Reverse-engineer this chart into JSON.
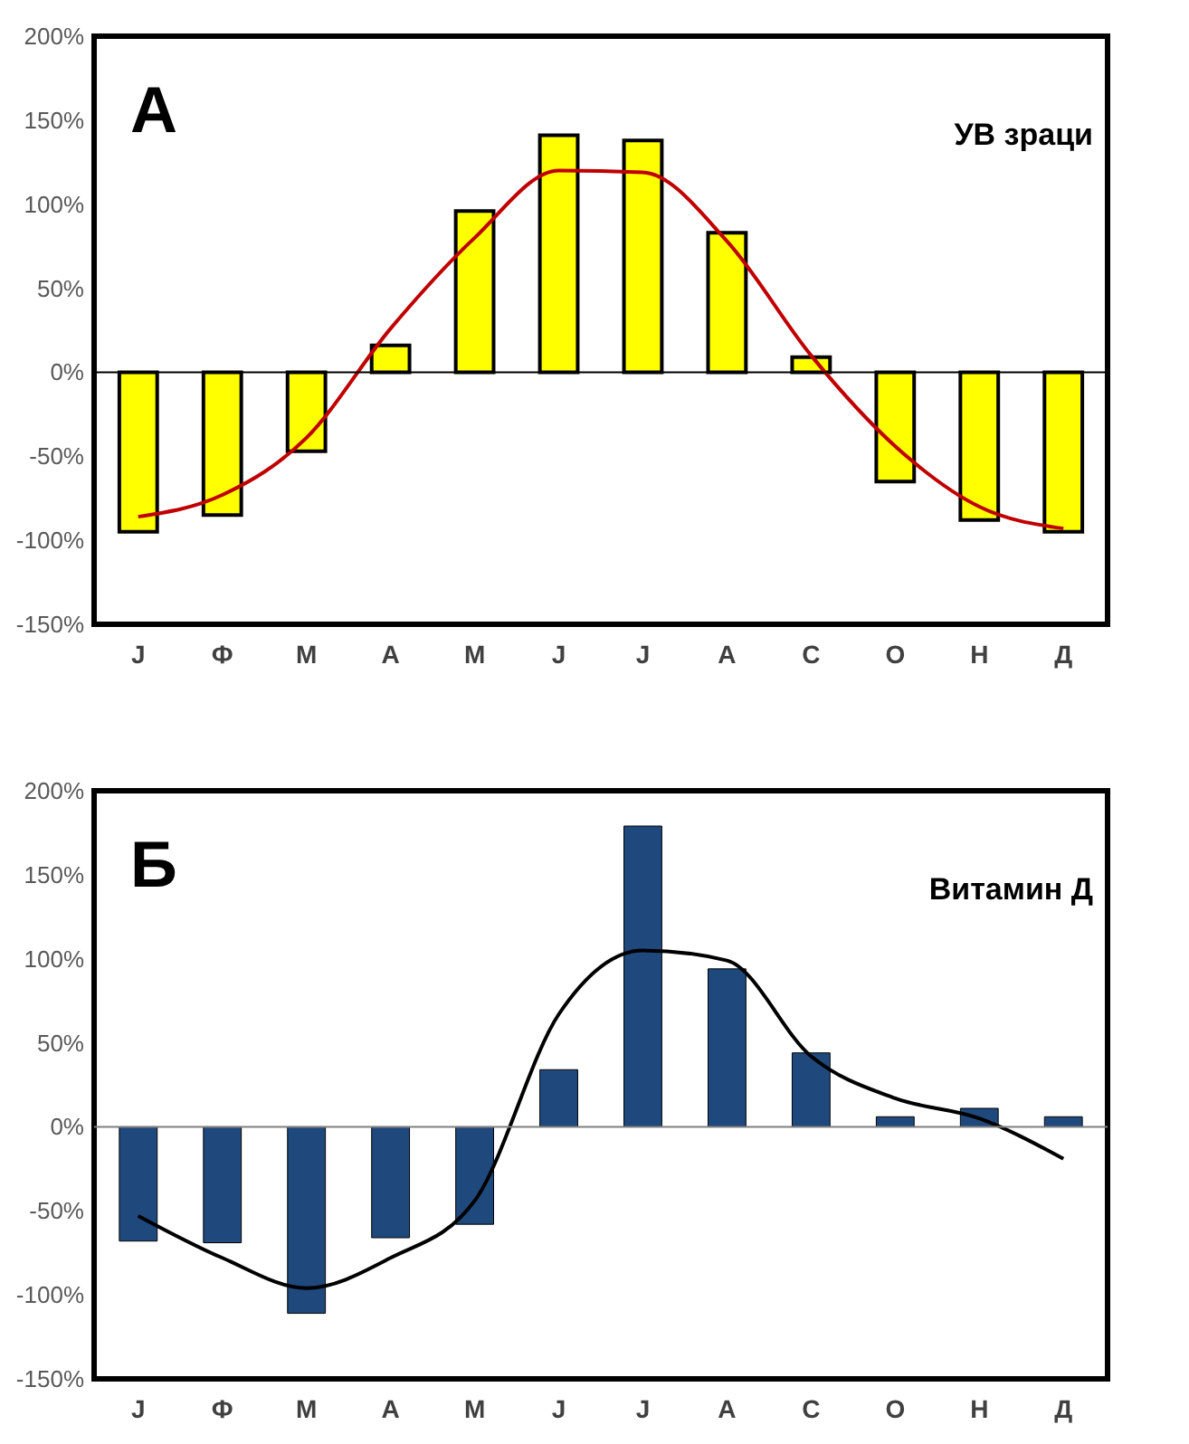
{
  "chart_data": [
    {
      "type": "bar",
      "categories": [
        "Ј",
        "Ф",
        "М",
        "А",
        "М",
        "Ј",
        "Ј",
        "А",
        "С",
        "О",
        "Н",
        "Д"
      ],
      "series": [
        {
          "color": "#ffff00",
          "values": [
            -95,
            -85,
            -47,
            16,
            96,
            141,
            138,
            83,
            9,
            -65,
            -88,
            -95
          ]
        },
        {
          "type": "line",
          "color": "#c00000",
          "values": [
            -86,
            -73,
            -39,
            26,
            80,
            120,
            119,
            78,
            10,
            -44,
            -80,
            -93
          ]
        }
      ],
      "ylim": [
        -150,
        200
      ],
      "yticks": [
        {
          "value": -150,
          "label": "-150%"
        },
        {
          "value": -100,
          "label": "-100%"
        },
        {
          "value": -50,
          "label": "-50%"
        },
        {
          "value": 0,
          "label": "0%"
        },
        {
          "value": 50,
          "label": "50%"
        },
        {
          "value": 100,
          "label": "100%"
        },
        {
          "value": 150,
          "label": "150%"
        },
        {
          "value": 200,
          "label": "200%"
        }
      ],
      "ref_lines": [
        {
          "axis": "y",
          "value": 0,
          "color": "#000000"
        }
      ],
      "annotations": [
        "А",
        "УВ зраци"
      ],
      "grid": false
    },
    {
      "type": "bar",
      "categories": [
        "Ј",
        "Ф",
        "М",
        "А",
        "М",
        "Ј",
        "Ј",
        "А",
        "С",
        "О",
        "Н",
        "Д"
      ],
      "series": [
        {
          "color": "#1f497d",
          "values": [
            -68,
            -69,
            -111,
            -66,
            -58,
            34,
            179,
            94,
            44,
            6,
            11,
            6
          ]
        },
        {
          "type": "line",
          "color": "#000000",
          "values": [
            -53,
            -78,
            -96,
            -78,
            -44,
            67,
            105,
            99,
            42,
            17,
            5,
            -19
          ]
        }
      ],
      "ylim": [
        -150,
        200
      ],
      "yticks": [
        {
          "value": -150,
          "label": "-150%"
        },
        {
          "value": -100,
          "label": "-100%"
        },
        {
          "value": -50,
          "label": "-50%"
        },
        {
          "value": 0,
          "label": "0%"
        },
        {
          "value": 50,
          "label": "50%"
        },
        {
          "value": 100,
          "label": "100%"
        },
        {
          "value": 150,
          "label": "150%"
        },
        {
          "value": 200,
          "label": "200%"
        }
      ],
      "ref_lines": [
        {
          "axis": "y",
          "value": 0,
          "color": "#808080"
        }
      ],
      "annotations": [
        "Б",
        "Витамин Д"
      ],
      "grid": false
    }
  ]
}
